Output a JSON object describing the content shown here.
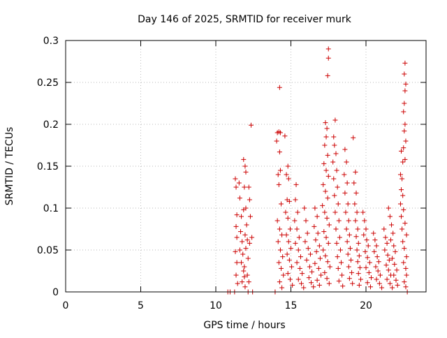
{
  "chart_data": {
    "type": "scatter",
    "title": "Day 146 of 2025, SRMTID for receiver murk",
    "xlabel": "GPS time / hours",
    "ylabel": "SRMTID / TECUs",
    "xlim": [
      0,
      24
    ],
    "ylim": [
      0,
      0.3
    ],
    "x_ticks": [
      0,
      5,
      10,
      15,
      20
    ],
    "x_tick_labels": [
      "0",
      "5",
      "10",
      "15",
      "20"
    ],
    "y_ticks": [
      0,
      0.05,
      0.1,
      0.15,
      0.2,
      0.25,
      0.3
    ],
    "y_tick_labels": [
      "0",
      "0.05",
      "0.1",
      "0.15",
      "0.2",
      "0.25",
      "0.3"
    ],
    "grid": true,
    "marker": "plus",
    "color": "#cc0000",
    "series": [
      {
        "points": [
          [
            10.8,
            0.0
          ],
          [
            10.95,
            0.0
          ],
          [
            11.25,
            0.0
          ],
          [
            12.15,
            0.0
          ],
          [
            12.45,
            0.0
          ],
          [
            13.95,
            0.0
          ],
          [
            22.75,
            0.0
          ],
          [
            11.3,
            0.135
          ],
          [
            11.35,
            0.125
          ],
          [
            11.4,
            0.092
          ],
          [
            11.35,
            0.078
          ],
          [
            11.4,
            0.065
          ],
          [
            11.3,
            0.048
          ],
          [
            11.4,
            0.035
          ],
          [
            11.35,
            0.02
          ],
          [
            11.45,
            0.01
          ],
          [
            11.55,
            0.13
          ],
          [
            11.6,
            0.112
          ],
          [
            11.7,
            0.09
          ],
          [
            11.65,
            0.072
          ],
          [
            11.75,
            0.06
          ],
          [
            11.6,
            0.05
          ],
          [
            11.8,
            0.045
          ],
          [
            11.7,
            0.035
          ],
          [
            11.85,
            0.025
          ],
          [
            11.9,
            0.018
          ],
          [
            11.75,
            0.012
          ],
          [
            11.95,
            0.006
          ],
          [
            11.85,
            0.158
          ],
          [
            11.95,
            0.15
          ],
          [
            12.0,
            0.143
          ],
          [
            11.9,
            0.125
          ],
          [
            12.0,
            0.1
          ],
          [
            11.85,
            0.098
          ],
          [
            12.05,
            0.08
          ],
          [
            11.95,
            0.068
          ],
          [
            12.1,
            0.062
          ],
          [
            12.0,
            0.052
          ],
          [
            12.15,
            0.04
          ],
          [
            11.9,
            0.03
          ],
          [
            12.1,
            0.02
          ],
          [
            12.2,
            0.012
          ],
          [
            12.35,
            0.199
          ],
          [
            12.2,
            0.125
          ],
          [
            12.25,
            0.11
          ],
          [
            12.3,
            0.09
          ],
          [
            12.4,
            0.065
          ],
          [
            12.25,
            0.058
          ],
          [
            14.25,
            0.244
          ],
          [
            14.1,
            0.19
          ],
          [
            14.2,
            0.191
          ],
          [
            14.3,
            0.19
          ],
          [
            14.05,
            0.18
          ],
          [
            14.25,
            0.167
          ],
          [
            14.6,
            0.186
          ],
          [
            14.15,
            0.14
          ],
          [
            14.3,
            0.145
          ],
          [
            14.2,
            0.128
          ],
          [
            14.35,
            0.105
          ],
          [
            14.1,
            0.085
          ],
          [
            14.25,
            0.075
          ],
          [
            14.4,
            0.068
          ],
          [
            14.15,
            0.06
          ],
          [
            14.3,
            0.05
          ],
          [
            14.45,
            0.042
          ],
          [
            14.2,
            0.035
          ],
          [
            14.35,
            0.028
          ],
          [
            14.5,
            0.02
          ],
          [
            14.25,
            0.012
          ],
          [
            14.4,
            0.005
          ],
          [
            14.7,
            0.14
          ],
          [
            14.8,
            0.15
          ],
          [
            14.85,
            0.135
          ],
          [
            14.75,
            0.11
          ],
          [
            14.9,
            0.108
          ],
          [
            14.65,
            0.095
          ],
          [
            14.8,
            0.088
          ],
          [
            14.95,
            0.075
          ],
          [
            14.7,
            0.068
          ],
          [
            14.85,
            0.06
          ],
          [
            15.0,
            0.052
          ],
          [
            14.75,
            0.045
          ],
          [
            14.9,
            0.038
          ],
          [
            15.05,
            0.03
          ],
          [
            14.8,
            0.022
          ],
          [
            14.95,
            0.015
          ],
          [
            15.1,
            0.008
          ],
          [
            15.35,
            0.128
          ],
          [
            15.3,
            0.11
          ],
          [
            15.45,
            0.095
          ],
          [
            15.25,
            0.085
          ],
          [
            15.4,
            0.075
          ],
          [
            15.55,
            0.065
          ],
          [
            15.3,
            0.058
          ],
          [
            15.5,
            0.05
          ],
          [
            15.65,
            0.042
          ],
          [
            15.4,
            0.035
          ],
          [
            15.6,
            0.028
          ],
          [
            15.75,
            0.022
          ],
          [
            15.5,
            0.015
          ],
          [
            15.7,
            0.01
          ],
          [
            15.85,
            0.005
          ],
          [
            15.9,
            0.1
          ],
          [
            16.0,
            0.085
          ],
          [
            16.1,
            0.07
          ],
          [
            15.95,
            0.06
          ],
          [
            16.15,
            0.052
          ],
          [
            16.3,
            0.045
          ],
          [
            16.05,
            0.038
          ],
          [
            16.25,
            0.03
          ],
          [
            16.4,
            0.024
          ],
          [
            16.2,
            0.017
          ],
          [
            16.35,
            0.011
          ],
          [
            16.5,
            0.006
          ],
          [
            16.6,
            0.1
          ],
          [
            16.75,
            0.09
          ],
          [
            16.55,
            0.078
          ],
          [
            16.8,
            0.07
          ],
          [
            16.65,
            0.062
          ],
          [
            16.9,
            0.055
          ],
          [
            16.7,
            0.048
          ],
          [
            16.95,
            0.04
          ],
          [
            16.6,
            0.034
          ],
          [
            16.85,
            0.028
          ],
          [
            17.0,
            0.02
          ],
          [
            16.75,
            0.014
          ],
          [
            16.9,
            0.008
          ],
          [
            17.5,
            0.29
          ],
          [
            17.5,
            0.279
          ],
          [
            17.45,
            0.258
          ],
          [
            17.3,
            0.202
          ],
          [
            17.4,
            0.195
          ],
          [
            17.35,
            0.185
          ],
          [
            17.25,
            0.175
          ],
          [
            17.45,
            0.163
          ],
          [
            17.2,
            0.153
          ],
          [
            17.35,
            0.145
          ],
          [
            17.5,
            0.138
          ],
          [
            17.15,
            0.128
          ],
          [
            17.3,
            0.12
          ],
          [
            17.45,
            0.112
          ],
          [
            17.1,
            0.103
          ],
          [
            17.25,
            0.095
          ],
          [
            17.4,
            0.088
          ],
          [
            17.55,
            0.08
          ],
          [
            17.2,
            0.072
          ],
          [
            17.35,
            0.065
          ],
          [
            17.5,
            0.058
          ],
          [
            17.15,
            0.05
          ],
          [
            17.3,
            0.043
          ],
          [
            17.45,
            0.036
          ],
          [
            17.6,
            0.03
          ],
          [
            17.25,
            0.023
          ],
          [
            17.4,
            0.016
          ],
          [
            17.55,
            0.01
          ],
          [
            17.85,
            0.185
          ],
          [
            17.9,
            0.175
          ],
          [
            17.95,
            0.205
          ],
          [
            18.0,
            0.165
          ],
          [
            17.8,
            0.155
          ],
          [
            18.05,
            0.145
          ],
          [
            17.85,
            0.135
          ],
          [
            18.1,
            0.125
          ],
          [
            17.9,
            0.115
          ],
          [
            18.15,
            0.105
          ],
          [
            17.95,
            0.095
          ],
          [
            18.2,
            0.085
          ],
          [
            18.0,
            0.075
          ],
          [
            18.25,
            0.065
          ],
          [
            18.05,
            0.058
          ],
          [
            18.3,
            0.05
          ],
          [
            18.1,
            0.042
          ],
          [
            18.35,
            0.035
          ],
          [
            18.15,
            0.028
          ],
          [
            18.4,
            0.02
          ],
          [
            18.2,
            0.013
          ],
          [
            18.45,
            0.007
          ],
          [
            18.6,
            0.17
          ],
          [
            18.7,
            0.155
          ],
          [
            18.55,
            0.14
          ],
          [
            18.75,
            0.13
          ],
          [
            18.6,
            0.118
          ],
          [
            18.8,
            0.105
          ],
          [
            18.65,
            0.095
          ],
          [
            18.85,
            0.085
          ],
          [
            18.7,
            0.075
          ],
          [
            18.9,
            0.068
          ],
          [
            18.75,
            0.06
          ],
          [
            18.95,
            0.052
          ],
          [
            18.8,
            0.045
          ],
          [
            19.0,
            0.038
          ],
          [
            18.85,
            0.03
          ],
          [
            19.05,
            0.023
          ],
          [
            18.9,
            0.016
          ],
          [
            19.1,
            0.01
          ],
          [
            19.15,
            0.184
          ],
          [
            19.3,
            0.143
          ],
          [
            19.2,
            0.13
          ],
          [
            19.35,
            0.118
          ],
          [
            19.25,
            0.105
          ],
          [
            19.4,
            0.095
          ],
          [
            19.3,
            0.085
          ],
          [
            19.45,
            0.075
          ],
          [
            19.35,
            0.066
          ],
          [
            19.5,
            0.058
          ],
          [
            19.4,
            0.05
          ],
          [
            19.55,
            0.043
          ],
          [
            19.45,
            0.036
          ],
          [
            19.6,
            0.029
          ],
          [
            19.5,
            0.022
          ],
          [
            19.65,
            0.015
          ],
          [
            19.55,
            0.008
          ],
          [
            19.8,
            0.095
          ],
          [
            19.9,
            0.085
          ],
          [
            20.0,
            0.075
          ],
          [
            19.85,
            0.068
          ],
          [
            20.05,
            0.062
          ],
          [
            20.15,
            0.055
          ],
          [
            19.95,
            0.048
          ],
          [
            20.1,
            0.041
          ],
          [
            20.25,
            0.035
          ],
          [
            20.0,
            0.029
          ],
          [
            20.2,
            0.023
          ],
          [
            20.35,
            0.017
          ],
          [
            20.1,
            0.011
          ],
          [
            20.3,
            0.006
          ],
          [
            20.5,
            0.07
          ],
          [
            20.6,
            0.062
          ],
          [
            20.7,
            0.055
          ],
          [
            20.55,
            0.048
          ],
          [
            20.75,
            0.042
          ],
          [
            20.85,
            0.036
          ],
          [
            20.65,
            0.03
          ],
          [
            20.8,
            0.025
          ],
          [
            20.95,
            0.02
          ],
          [
            20.7,
            0.015
          ],
          [
            20.9,
            0.01
          ],
          [
            21.05,
            0.005
          ],
          [
            21.2,
            0.075
          ],
          [
            21.3,
            0.065
          ],
          [
            21.4,
            0.058
          ],
          [
            21.25,
            0.05
          ],
          [
            21.45,
            0.044
          ],
          [
            21.55,
            0.038
          ],
          [
            21.35,
            0.032
          ],
          [
            21.5,
            0.026
          ],
          [
            21.65,
            0.02
          ],
          [
            21.4,
            0.015
          ],
          [
            21.6,
            0.01
          ],
          [
            21.75,
            0.005
          ],
          [
            21.5,
            0.1
          ],
          [
            21.6,
            0.09
          ],
          [
            21.7,
            0.08
          ],
          [
            21.8,
            0.07
          ],
          [
            21.65,
            0.062
          ],
          [
            21.85,
            0.055
          ],
          [
            21.95,
            0.048
          ],
          [
            21.75,
            0.04
          ],
          [
            21.9,
            0.033
          ],
          [
            22.05,
            0.026
          ],
          [
            21.85,
            0.02
          ],
          [
            22.0,
            0.014
          ],
          [
            22.1,
            0.008
          ],
          [
            22.6,
            0.273
          ],
          [
            22.55,
            0.26
          ],
          [
            22.65,
            0.248
          ],
          [
            22.6,
            0.24
          ],
          [
            22.55,
            0.225
          ],
          [
            22.5,
            0.215
          ],
          [
            22.6,
            0.2
          ],
          [
            22.55,
            0.192
          ],
          [
            22.65,
            0.18
          ],
          [
            22.5,
            0.172
          ],
          [
            22.35,
            0.168
          ],
          [
            22.6,
            0.158
          ],
          [
            22.45,
            0.155
          ],
          [
            22.3,
            0.14
          ],
          [
            22.4,
            0.135
          ],
          [
            22.35,
            0.122
          ],
          [
            22.45,
            0.115
          ],
          [
            22.3,
            0.105
          ],
          [
            22.5,
            0.098
          ],
          [
            22.35,
            0.09
          ],
          [
            22.6,
            0.082
          ],
          [
            22.4,
            0.075
          ],
          [
            22.7,
            0.068
          ],
          [
            22.45,
            0.06
          ],
          [
            22.55,
            0.052
          ],
          [
            22.7,
            0.042
          ],
          [
            22.5,
            0.035
          ],
          [
            22.65,
            0.028
          ],
          [
            22.7,
            0.02
          ],
          [
            22.55,
            0.012
          ],
          [
            22.65,
            0.006
          ]
        ]
      }
    ]
  }
}
